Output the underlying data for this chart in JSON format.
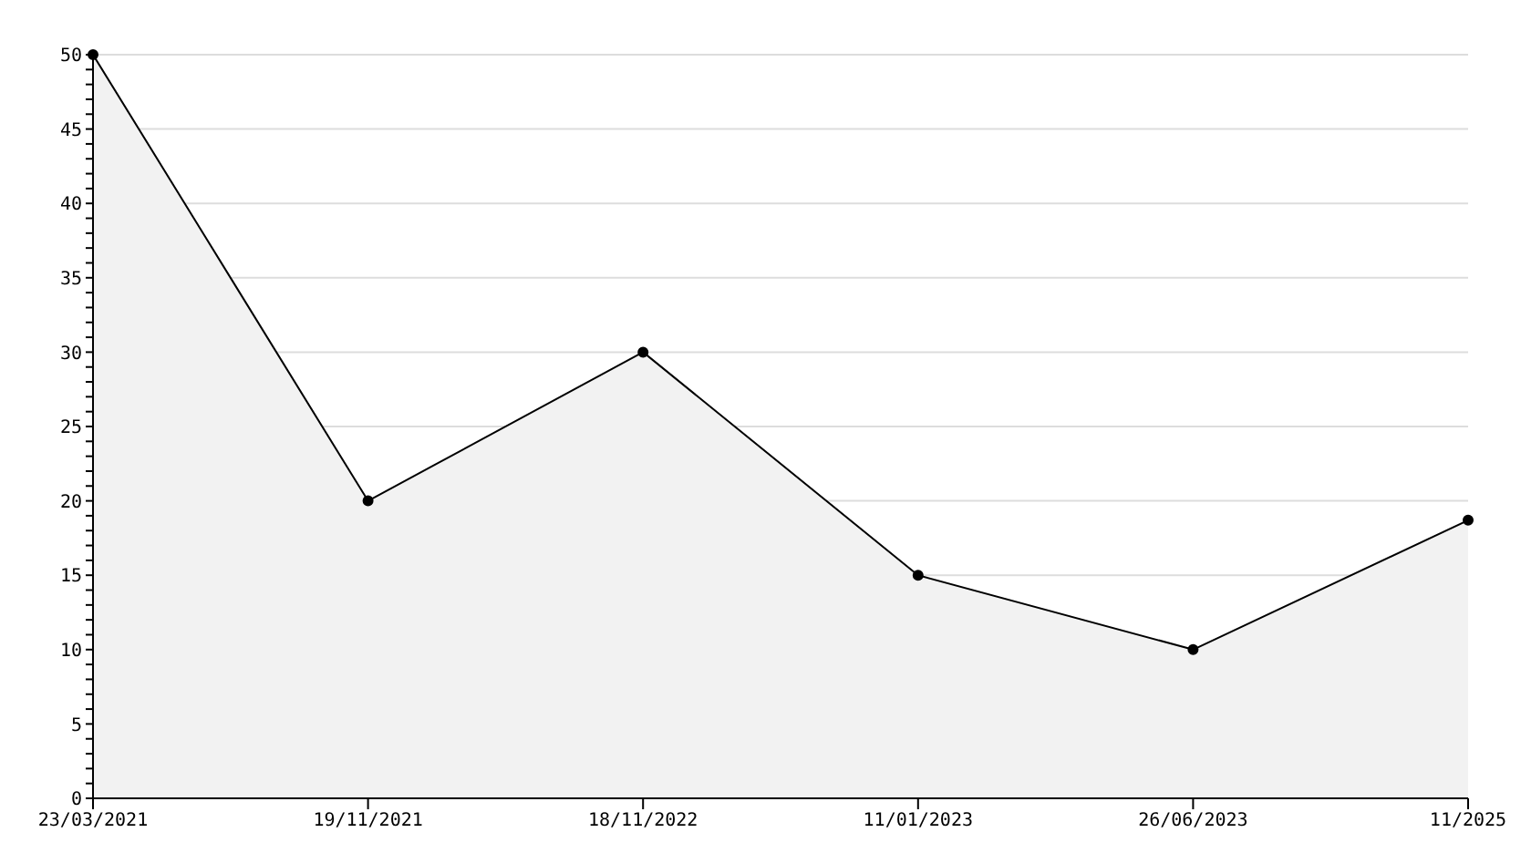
{
  "chart_data": {
    "type": "area",
    "categories": [
      "23/03/2021",
      "19/11/2021",
      "18/11/2022",
      "11/01/2023",
      "26/06/2023",
      "11/2025"
    ],
    "series": [
      {
        "color": "#000000",
        "values": [
          50,
          20,
          30,
          15,
          10,
          18.7
        ]
      }
    ],
    "ylim": [
      0,
      50
    ],
    "yticks": [
      0,
      {
        "value": 1,
        "label": null
      },
      {
        "value": 2,
        "label": null
      },
      {
        "value": 3,
        "label": null
      },
      {
        "value": 4,
        "label": null
      },
      5,
      {
        "value": 6,
        "label": null
      },
      {
        "value": 7,
        "label": null
      },
      {
        "value": 8,
        "label": null
      },
      {
        "value": 9,
        "label": null
      },
      10,
      {
        "value": 11,
        "label": null
      },
      {
        "value": 12,
        "label": null
      },
      {
        "value": 13,
        "label": null
      },
      {
        "value": 14,
        "label": null
      },
      15,
      {
        "value": 16,
        "label": null
      },
      {
        "value": 17,
        "label": null
      },
      {
        "value": 18,
        "label": null
      },
      {
        "value": 19,
        "label": null
      },
      20,
      {
        "value": 21,
        "label": null
      },
      {
        "value": 22,
        "label": null
      },
      {
        "value": 23,
        "label": null
      },
      {
        "value": 24,
        "label": null
      },
      25,
      {
        "value": 26,
        "label": null
      },
      {
        "value": 27,
        "label": null
      },
      {
        "value": 28,
        "label": null
      },
      {
        "value": 29,
        "label": null
      },
      30,
      {
        "value": 31,
        "label": null
      },
      {
        "value": 32,
        "label": null
      },
      {
        "value": 33,
        "label": null
      },
      {
        "value": 34,
        "label": null
      },
      35,
      {
        "value": 36,
        "label": null
      },
      {
        "value": 37,
        "label": null
      },
      {
        "value": 38,
        "label": null
      },
      {
        "value": 39,
        "label": null
      },
      40,
      {
        "value": 41,
        "label": null
      },
      {
        "value": 42,
        "label": null
      },
      {
        "value": 43,
        "label": null
      },
      {
        "value": 44,
        "label": null
      },
      45,
      {
        "value": 46,
        "label": null
      },
      {
        "value": 47,
        "label": null
      },
      {
        "value": 48,
        "label": null
      },
      {
        "value": 49,
        "label": null
      },
      50
    ],
    "grid": "y",
    "marker": "circle",
    "line_style": "solid"
  }
}
